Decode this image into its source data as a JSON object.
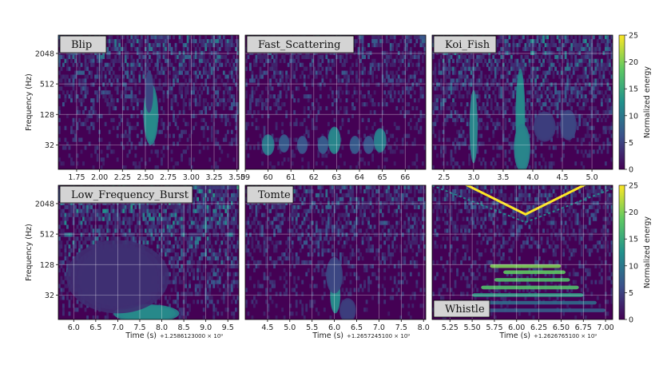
{
  "figure": {
    "colormap": [
      "#440154",
      "#3b528b",
      "#21918c",
      "#5ec962",
      "#fde725"
    ],
    "grid_color": "#ffffff"
  },
  "chart_data": [
    {
      "type": "heatmap",
      "title": "Blip",
      "xlabel": "",
      "ylabel": "Frequency (Hz)",
      "x_ticks": [
        "1.75",
        "2.00",
        "2.25",
        "2.50",
        "2.75",
        "3.00",
        "3.25",
        "3.50"
      ],
      "xlim": [
        1.55,
        3.52
      ],
      "y_ticks": [
        "32",
        "128",
        "512",
        "2048"
      ],
      "ylim_log2": [
        3.4,
        12.2
      ],
      "offset": "",
      "colorbar": false,
      "features": [
        {
          "kind": "blob",
          "x": 2.56,
          "y_log2": 7.0,
          "dx": 0.035,
          "dy": 1.0,
          "intensity": 1.0
        },
        {
          "kind": "blob",
          "x": 2.54,
          "y_log2": 8.5,
          "dx": 0.02,
          "dy": 0.7,
          "intensity": 0.45
        }
      ],
      "noise_level": 0.22
    },
    {
      "type": "heatmap",
      "title": "Fast_Scattering",
      "xlabel": "",
      "ylabel": "",
      "x_ticks": [
        "59",
        "60",
        "61",
        "62",
        "63",
        "64",
        "65",
        "66"
      ],
      "xlim": [
        59.0,
        66.9
      ],
      "y_ticks": [],
      "ylim_log2": [
        3.4,
        12.2
      ],
      "offset": "",
      "colorbar": false,
      "features": [
        {
          "kind": "blob",
          "x": 60.0,
          "y_log2": 5.0,
          "dx": 0.12,
          "dy": 0.35,
          "intensity": 0.85
        },
        {
          "kind": "blob",
          "x": 60.7,
          "y_log2": 5.1,
          "dx": 0.1,
          "dy": 0.3,
          "intensity": 0.6
        },
        {
          "kind": "blob",
          "x": 61.5,
          "y_log2": 5.0,
          "dx": 0.1,
          "dy": 0.3,
          "intensity": 0.55
        },
        {
          "kind": "blob",
          "x": 62.4,
          "y_log2": 5.0,
          "dx": 0.1,
          "dy": 0.3,
          "intensity": 0.6
        },
        {
          "kind": "blob",
          "x": 62.9,
          "y_log2": 5.3,
          "dx": 0.12,
          "dy": 0.45,
          "intensity": 0.95
        },
        {
          "kind": "blob",
          "x": 63.8,
          "y_log2": 5.0,
          "dx": 0.1,
          "dy": 0.3,
          "intensity": 0.6
        },
        {
          "kind": "blob",
          "x": 64.4,
          "y_log2": 5.0,
          "dx": 0.1,
          "dy": 0.3,
          "intensity": 0.55
        },
        {
          "kind": "blob",
          "x": 64.9,
          "y_log2": 5.3,
          "dx": 0.12,
          "dy": 0.4,
          "intensity": 0.9
        }
      ],
      "noise_level": 0.18
    },
    {
      "type": "heatmap",
      "title": "Koi_Fish",
      "xlabel": "",
      "ylabel": "",
      "x_ticks": [
        "2.5",
        "3.0",
        "3.5",
        "4.0",
        "4.5",
        "5.0"
      ],
      "xlim": [
        2.3,
        5.35
      ],
      "y_ticks": [],
      "ylim_log2": [
        3.4,
        12.2
      ],
      "offset": "",
      "colorbar": true,
      "colorbar_label": "Normalized energy",
      "colorbar_ticks": [
        "0",
        "5",
        "10",
        "15",
        "20",
        "25"
      ],
      "colorbar_range": [
        0,
        25
      ],
      "features": [
        {
          "kind": "blob",
          "x": 3.0,
          "y_log2": 6.2,
          "dx": 0.03,
          "dy": 1.2,
          "intensity": 0.95
        },
        {
          "kind": "blob",
          "x": 3.79,
          "y_log2": 6.8,
          "dx": 0.035,
          "dy": 1.6,
          "intensity": 1.0
        },
        {
          "kind": "blob",
          "x": 3.82,
          "y_log2": 4.8,
          "dx": 0.06,
          "dy": 0.8,
          "intensity": 0.95
        },
        {
          "kind": "blob",
          "x": 4.2,
          "y_log2": 6.2,
          "dx": 0.08,
          "dy": 0.5,
          "intensity": 0.4
        },
        {
          "kind": "blob",
          "x": 4.6,
          "y_log2": 6.3,
          "dx": 0.06,
          "dy": 0.5,
          "intensity": 0.45
        }
      ],
      "noise_level": 0.25
    },
    {
      "type": "heatmap",
      "title": "Low_Frequency_Burst",
      "xlabel": "Time (s)",
      "ylabel": "Frequency (Hz)",
      "x_ticks": [
        "6.0",
        "6.5",
        "7.0",
        "7.5",
        "8.0",
        "8.5",
        "9.0",
        "9.5"
      ],
      "xlim": [
        5.65,
        9.75
      ],
      "y_ticks": [
        "32",
        "128",
        "512",
        "2048"
      ],
      "ylim_log2": [
        3.4,
        12.2
      ],
      "offset": "+1.2586123000 × 10⁹",
      "colorbar": false,
      "features": [
        {
          "kind": "blob",
          "x": 7.65,
          "y_log2": 3.8,
          "dx": 0.32,
          "dy": 0.3,
          "intensity": 1.0
        },
        {
          "kind": "blob",
          "x": 7.0,
          "y_log2": 6.2,
          "dx": 0.5,
          "dy": 1.2,
          "intensity": 0.3
        }
      ],
      "noise_level": 0.3
    },
    {
      "type": "heatmap",
      "title": "Tomte",
      "xlabel": "Time (s)",
      "ylabel": "",
      "x_ticks": [
        "4.5",
        "5.0",
        "5.5",
        "6.0",
        "6.5",
        "7.0",
        "7.5",
        "8.0"
      ],
      "xlim": [
        4.0,
        8.05
      ],
      "y_ticks": [],
      "ylim_log2": [
        3.4,
        12.2
      ],
      "offset": "+1.2657245100 × 10⁹",
      "colorbar": false,
      "features": [
        {
          "kind": "blob",
          "x": 6.02,
          "y_log2": 5.0,
          "dx": 0.05,
          "dy": 0.6,
          "intensity": 1.0
        },
        {
          "kind": "blob",
          "x": 6.0,
          "y_log2": 6.3,
          "dx": 0.08,
          "dy": 0.6,
          "intensity": 0.45
        },
        {
          "kind": "blob",
          "x": 6.3,
          "y_log2": 4.0,
          "dx": 0.08,
          "dy": 0.4,
          "intensity": 0.4
        }
      ],
      "noise_level": 0.2
    },
    {
      "type": "heatmap",
      "title": "Whistle",
      "xlabel": "Time (s)",
      "ylabel": "",
      "x_ticks": [
        "5.25",
        "5.50",
        "5.75",
        "6.00",
        "6.25",
        "6.50",
        "6.75",
        "7.00"
      ],
      "xlim": [
        5.05,
        7.08
      ],
      "y_ticks": [],
      "ylim_log2": [
        3.4,
        12.2
      ],
      "offset": "+1.2626765100 × 10⁹",
      "colorbar": true,
      "colorbar_label": "Normalized energy",
      "colorbar_ticks": [
        "0",
        "5",
        "10",
        "15",
        "20",
        "25"
      ],
      "colorbar_range": [
        0,
        25
      ],
      "features": [
        {
          "kind": "vshape",
          "x_center": 6.1,
          "y_min_log2": 10.3,
          "slope": 2.9,
          "intensity": 1.0
        },
        {
          "kind": "band",
          "x_from": 5.7,
          "x_to": 6.5,
          "y_log2": 6.9,
          "dy": 0.12,
          "intensity": 0.8
        },
        {
          "kind": "band",
          "x_from": 5.85,
          "x_to": 6.55,
          "y_log2": 6.5,
          "dy": 0.12,
          "intensity": 0.75
        },
        {
          "kind": "band",
          "x_from": 5.75,
          "x_to": 6.6,
          "y_log2": 6.0,
          "dy": 0.12,
          "intensity": 0.7
        },
        {
          "kind": "band",
          "x_from": 5.6,
          "x_to": 6.7,
          "y_log2": 5.5,
          "dy": 0.12,
          "intensity": 0.7
        },
        {
          "kind": "band",
          "x_from": 5.5,
          "x_to": 6.75,
          "y_log2": 5.0,
          "dy": 0.12,
          "intensity": 0.55
        },
        {
          "kind": "band",
          "x_from": 5.2,
          "x_to": 6.9,
          "y_log2": 4.5,
          "dy": 0.12,
          "intensity": 0.35
        },
        {
          "kind": "band",
          "x_from": 5.1,
          "x_to": 7.0,
          "y_log2": 4.0,
          "dy": 0.12,
          "intensity": 0.3
        }
      ],
      "noise_level": 0.18
    }
  ]
}
